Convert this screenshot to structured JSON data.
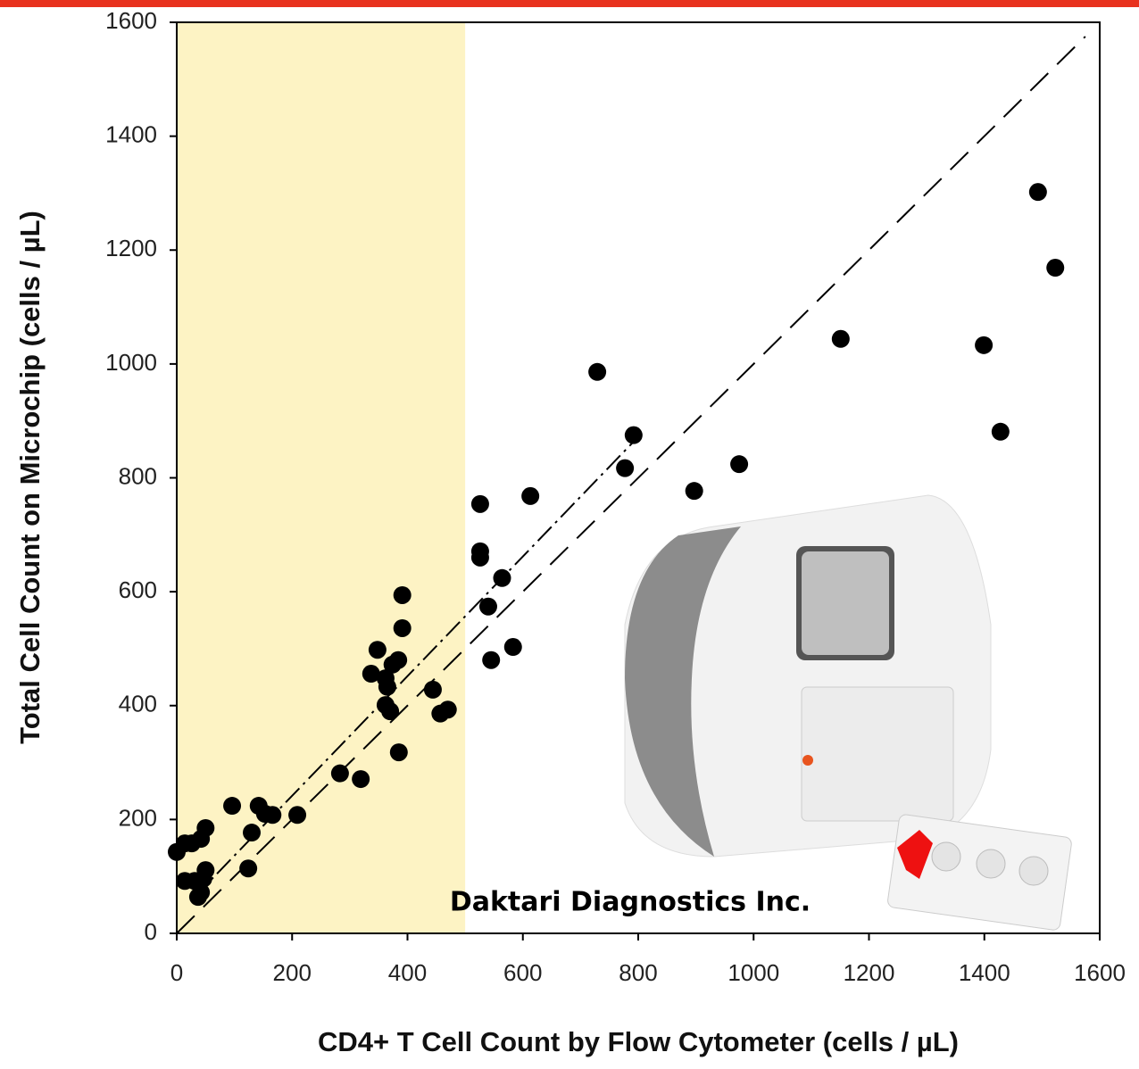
{
  "chart_data": {
    "type": "scatter",
    "x_label": "CD4+ T Cell Count by Flow Cytometer (cells / µL)",
    "y_label": "Total Cell Count on Microchip (cells / µL)",
    "annotation": "Daktari Diagnostics Inc.",
    "xlim": [
      0,
      1600
    ],
    "ylim": [
      0,
      1600
    ],
    "xticks": [
      0,
      200,
      400,
      600,
      800,
      1000,
      1200,
      1400,
      1600
    ],
    "yticks": [
      0,
      200,
      400,
      600,
      800,
      1000,
      1200,
      1400,
      1600
    ],
    "highlight_xrange": [
      0,
      500
    ],
    "highlight_color": "#fdf3c4",
    "series": [
      {
        "color": "#000000",
        "x": [
          0,
          14,
          26,
          42,
          50,
          14,
          31,
          46,
          50,
          42,
          37,
          96,
          142,
          130,
          153,
          166,
          124,
          209,
          283,
          319,
          337,
          348,
          362,
          365,
          362,
          370,
          374,
          384,
          391,
          391,
          385,
          444,
          457,
          470,
          526,
          526,
          526,
          540,
          545,
          564,
          583,
          613,
          729,
          777,
          792,
          897,
          975,
          1151,
          1399,
          1428,
          1493,
          1523
        ],
        "values": [
          143,
          158,
          158,
          166,
          185,
          92,
          92,
          96,
          111,
          72,
          64,
          224,
          224,
          177,
          210,
          208,
          114,
          208,
          281,
          271,
          456,
          498,
          448,
          433,
          401,
          390,
          472,
          480,
          594,
          536,
          318,
          428,
          386,
          393,
          754,
          671,
          660,
          574,
          480,
          624,
          503,
          768,
          986,
          817,
          875,
          777,
          824,
          1044,
          1033,
          881,
          1302,
          1169
        ]
      }
    ],
    "lines": [
      {
        "x": [
          0,
          1575
        ],
        "y": [
          0,
          1575
        ],
        "style": "dashed"
      },
      {
        "x": [
          30,
          800
        ],
        "y": [
          63,
          872
        ],
        "style": "dashdot"
      }
    ]
  }
}
